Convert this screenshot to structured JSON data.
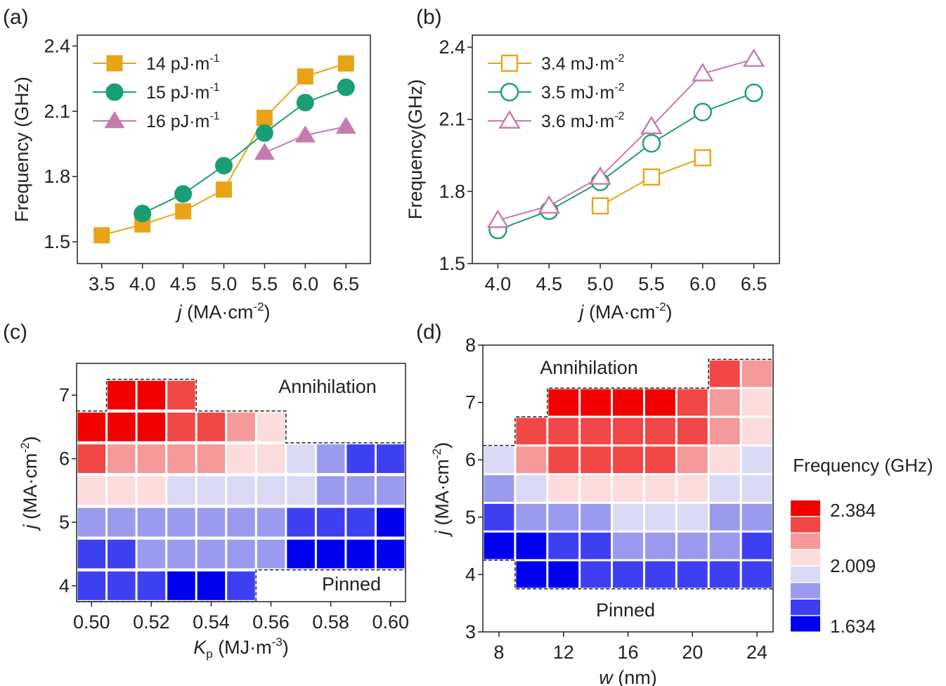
{
  "panels": {
    "a": {
      "label": "(a)",
      "chart_data": {
        "type": "line",
        "xlabel_italic": "j",
        "xlabel_unit": " (MA·cm",
        "xlabel_sup": "-2",
        "xlabel_close": ")",
        "ylabel": "Frequency (GHz)",
        "xlim": [
          3.2,
          6.8
        ],
        "ylim": [
          1.4,
          2.45
        ],
        "xticks": [
          "3.5",
          "4.0",
          "4.5",
          "5.0",
          "5.5",
          "6.0",
          "6.5"
        ],
        "yticks": [
          "1.5",
          "1.8",
          "2.1",
          "2.4"
        ],
        "series": [
          {
            "name": "14 pJ·m",
            "sup": "-1",
            "color": "#E8A317",
            "marker": "square",
            "filled": true,
            "x": [
              3.5,
              4.0,
              4.5,
              5.0,
              5.5,
              6.0,
              6.5
            ],
            "y": [
              1.53,
              1.58,
              1.64,
              1.74,
              2.07,
              2.26,
              2.32
            ]
          },
          {
            "name": "15 pJ·m",
            "sup": "-1",
            "color": "#1A9E75",
            "marker": "circle",
            "filled": true,
            "x": [
              4.0,
              4.5,
              5.0,
              5.5,
              6.0,
              6.5
            ],
            "y": [
              1.63,
              1.72,
              1.85,
              2.0,
              2.14,
              2.21
            ]
          },
          {
            "name": "16 pJ·m",
            "sup": "-1",
            "color": "#C57BAD",
            "marker": "triangle",
            "filled": true,
            "x": [
              5.5,
              6.0,
              6.5
            ],
            "y": [
              1.91,
              1.99,
              2.03
            ]
          }
        ]
      }
    },
    "b": {
      "label": "(b)",
      "chart_data": {
        "type": "line",
        "xlabel_italic": "j",
        "xlabel_unit": " (MA·cm",
        "xlabel_sup": "-2",
        "xlabel_close": ")",
        "ylabel": "Frequency(GHz)",
        "xlim": [
          3.75,
          6.75
        ],
        "ylim": [
          1.5,
          2.45
        ],
        "xticks": [
          "4.0",
          "4.5",
          "5.0",
          "5.5",
          "6.0",
          "6.5"
        ],
        "yticks": [
          "1.5",
          "1.8",
          "2.1",
          "2.4"
        ],
        "series": [
          {
            "name": "3.4 mJ·m",
            "sup": "-2",
            "color": "#E8A317",
            "marker": "square",
            "filled": false,
            "x": [
              5.0,
              5.5,
              6.0
            ],
            "y": [
              1.74,
              1.86,
              1.94
            ]
          },
          {
            "name": "3.5 mJ·m",
            "sup": "-2",
            "color": "#1A9E75",
            "marker": "circle",
            "filled": false,
            "x": [
              4.0,
              4.5,
              5.0,
              5.5,
              6.0,
              6.5
            ],
            "y": [
              1.64,
              1.72,
              1.84,
              2.0,
              2.13,
              2.21
            ]
          },
          {
            "name": "3.6 mJ·m",
            "sup": "-2",
            "color": "#C57BAD",
            "marker": "triangle",
            "filled": false,
            "x": [
              4.0,
              4.5,
              5.0,
              5.5,
              6.0,
              6.5
            ],
            "y": [
              1.68,
              1.74,
              1.86,
              2.07,
              2.29,
              2.35
            ]
          }
        ]
      }
    },
    "c": {
      "label": "(c)",
      "chart_data": {
        "type": "heatmap",
        "xlabel_italic": "K",
        "xlabel_sub": "p",
        "xlabel_unit": " (MJ·m",
        "xlabel_sup": "-3",
        "xlabel_close": ")",
        "ylabel_italic": "j",
        "ylabel_unit": " (MA·cm",
        "ylabel_sup": "-2",
        "ylabel_close": ")",
        "xlim": [
          0.495,
          0.605
        ],
        "ylim": [
          3.75,
          7.5
        ],
        "xticks": [
          "0.50",
          "0.52",
          "0.54",
          "0.56",
          "0.58",
          "0.60"
        ],
        "yticks": [
          "4",
          "5",
          "6",
          "7"
        ],
        "x": [
          0.5,
          0.51,
          0.52,
          0.53,
          0.54,
          0.55,
          0.56,
          0.57,
          0.58,
          0.59,
          0.6
        ],
        "y": [
          4.0,
          4.5,
          5.0,
          5.5,
          6.0,
          6.5,
          7.0
        ],
        "levels": [
          [
            1,
            1,
            1,
            0,
            0,
            1,
            null,
            null,
            null,
            null,
            null
          ],
          [
            1,
            1,
            2,
            2,
            2,
            2,
            2,
            0,
            0,
            0,
            0
          ],
          [
            2,
            2,
            2,
            2,
            2,
            2,
            2,
            1,
            1,
            1,
            0
          ],
          [
            4,
            4,
            4,
            3,
            3,
            3,
            3,
            3,
            2,
            2,
            2
          ],
          [
            6,
            5,
            5,
            5,
            5,
            4,
            4,
            3,
            2,
            1,
            1
          ],
          [
            7,
            7,
            7,
            6,
            6,
            5,
            4,
            null,
            null,
            null,
            null
          ],
          [
            null,
            7,
            7,
            6,
            null,
            null,
            null,
            null,
            null,
            null,
            null
          ]
        ],
        "region_labels": {
          "top": "Annihilation",
          "bottom": "Pinned"
        }
      }
    },
    "d": {
      "label": "(d)",
      "chart_data": {
        "type": "heatmap",
        "xlabel_italic": "w",
        "xlabel_unit": " (nm)",
        "ylabel_italic": "j",
        "ylabel_unit": " (MA·cm",
        "ylabel_sup": "-2",
        "ylabel_close": ")",
        "xlim": [
          7,
          25
        ],
        "ylim": [
          3,
          8
        ],
        "xticks": [
          "8",
          "12",
          "16",
          "20",
          "24"
        ],
        "yticks": [
          "3",
          "4",
          "5",
          "6",
          "7",
          "8"
        ],
        "x": [
          8,
          10,
          12,
          14,
          16,
          18,
          20,
          22,
          24
        ],
        "y": [
          4.0,
          4.5,
          5.0,
          5.5,
          6.0,
          6.5,
          7.0,
          7.5
        ],
        "levels": [
          [
            null,
            0,
            0,
            1,
            1,
            1,
            1,
            1,
            1
          ],
          [
            0,
            0,
            1,
            1,
            2,
            2,
            2,
            2,
            1
          ],
          [
            1,
            2,
            2,
            2,
            3,
            3,
            3,
            2,
            2
          ],
          [
            2,
            3,
            4,
            4,
            4,
            4,
            4,
            3,
            3
          ],
          [
            3,
            5,
            6,
            6,
            6,
            6,
            5,
            4,
            3
          ],
          [
            null,
            6,
            6,
            6,
            6,
            6,
            6,
            5,
            4
          ],
          [
            null,
            null,
            7,
            7,
            7,
            7,
            6,
            5,
            4
          ],
          [
            null,
            null,
            null,
            null,
            null,
            null,
            null,
            6,
            5
          ]
        ],
        "region_labels": {
          "top": "Annihilation",
          "bottom": "Pinned"
        }
      }
    }
  },
  "colorbar": {
    "title": "Frequency (GHz)",
    "levels": [
      "#0000F0",
      "#3F3FF2",
      "#9A9AEE",
      "#DADAF5",
      "#FCDCDC",
      "#F59A9A",
      "#F24747",
      "#F20000"
    ],
    "tick_labels": [
      "2.384",
      "2.009",
      "1.634"
    ]
  }
}
